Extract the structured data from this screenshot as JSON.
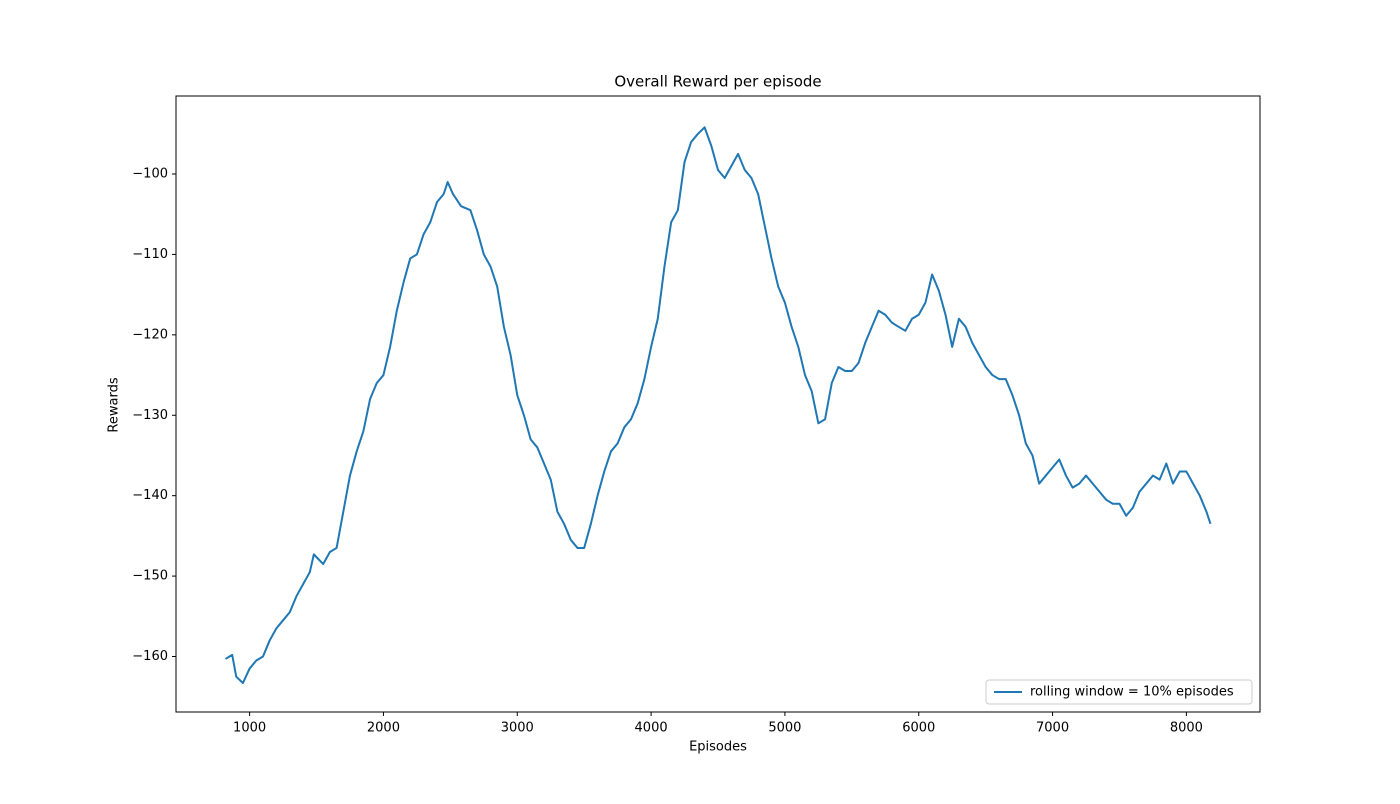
{
  "chart_data": {
    "type": "line",
    "title": "Overall Reward per episode",
    "x_label": "Episodes",
    "y_label": "Rewards",
    "xlim": [
      450,
      8550
    ],
    "ylim": [
      -166.9,
      -90.3
    ],
    "xticks": [
      1000,
      2000,
      3000,
      4000,
      5000,
      6000,
      7000,
      8000
    ],
    "yticks": [
      {
        "value": -160,
        "label": "−160"
      },
      {
        "value": -150,
        "label": "−150"
      },
      {
        "value": -140,
        "label": "−140"
      },
      {
        "value": -130,
        "label": "−130"
      },
      {
        "value": -120,
        "label": "−120"
      },
      {
        "value": -110,
        "label": "−110"
      },
      {
        "value": -100,
        "label": "−100"
      }
    ],
    "legend": "lower right",
    "grid": false,
    "x": [
      820,
      850,
      870,
      900,
      950,
      1000,
      1050,
      1100,
      1150,
      1200,
      1250,
      1300,
      1350,
      1400,
      1450,
      1480,
      1550,
      1600,
      1650,
      1700,
      1750,
      1800,
      1850,
      1900,
      1950,
      2000,
      2050,
      2100,
      2150,
      2200,
      2250,
      2300,
      2350,
      2400,
      2450,
      2480,
      2520,
      2580,
      2650,
      2700,
      2750,
      2800,
      2850,
      2900,
      2950,
      3000,
      3050,
      3100,
      3150,
      3200,
      3250,
      3300,
      3350,
      3400,
      3450,
      3500,
      3550,
      3600,
      3650,
      3700,
      3750,
      3800,
      3850,
      3900,
      3950,
      4000,
      4050,
      4100,
      4150,
      4200,
      4250,
      4300,
      4350,
      4400,
      4450,
      4500,
      4550,
      4600,
      4650,
      4700,
      4750,
      4800,
      4850,
      4900,
      4950,
      5000,
      5050,
      5100,
      5150,
      5200,
      5250,
      5300,
      5350,
      5400,
      5450,
      5500,
      5550,
      5600,
      5650,
      5700,
      5750,
      5800,
      5850,
      5900,
      5950,
      6000,
      6050,
      6100,
      6150,
      6200,
      6250,
      6300,
      6350,
      6400,
      6450,
      6500,
      6550,
      6600,
      6650,
      6700,
      6750,
      6800,
      6850,
      6900,
      6950,
      7000,
      7050,
      7100,
      7150,
      7200,
      7250,
      7300,
      7350,
      7400,
      7450,
      7500,
      7550,
      7600,
      7650,
      7700,
      7750,
      7800,
      7850,
      7900,
      7950,
      8000,
      8050,
      8100,
      8150,
      8180
    ],
    "series": [
      {
        "name": "rolling window = 10% episodes",
        "color": "#1f77b4",
        "values": [
          -160.3,
          -160.0,
          -159.8,
          -162.5,
          -163.3,
          -161.5,
          -160.5,
          -160.0,
          -158.0,
          -156.5,
          -155.5,
          -154.5,
          -152.5,
          -151.0,
          -149.5,
          -147.3,
          -148.5,
          -147.0,
          -146.5,
          -142.0,
          -137.5,
          -134.5,
          -132.0,
          -128.0,
          -126.0,
          -125.0,
          -121.5,
          -117.0,
          -113.5,
          -110.5,
          -110.0,
          -107.5,
          -106.0,
          -103.5,
          -102.5,
          -101.0,
          -102.5,
          -104.0,
          -104.5,
          -107.0,
          -110.0,
          -111.5,
          -114.0,
          -119.0,
          -122.5,
          -127.5,
          -130.0,
          -133.0,
          -134.0,
          -136.0,
          -138.0,
          -142.0,
          -143.5,
          -145.5,
          -146.5,
          -146.5,
          -143.5,
          -140.0,
          -137.0,
          -134.5,
          -133.5,
          -131.5,
          -130.5,
          -128.5,
          -125.5,
          -121.5,
          -118.0,
          -111.5,
          -106.0,
          -104.5,
          -98.5,
          -96.0,
          -95.0,
          -94.2,
          -96.5,
          -99.5,
          -100.5,
          -99.0,
          -97.5,
          -99.5,
          -100.5,
          -102.5,
          -106.5,
          -110.5,
          -114.0,
          -116.0,
          -119.0,
          -121.5,
          -125.0,
          -127.0,
          -131.0,
          -130.5,
          -126.0,
          -124.0,
          -124.5,
          -124.5,
          -123.5,
          -121.0,
          -119.0,
          -117.0,
          -117.5,
          -118.5,
          -119.0,
          -119.5,
          -118.0,
          -117.5,
          -116.0,
          -112.5,
          -114.5,
          -117.5,
          -121.5,
          -118.0,
          -119.0,
          -121.0,
          -122.5,
          -124.0,
          -125.0,
          -125.5,
          -125.5,
          -127.5,
          -130.0,
          -133.5,
          -135.0,
          -138.5,
          -137.5,
          -136.5,
          -135.5,
          -137.5,
          -139.0,
          -138.5,
          -137.5,
          -138.5,
          -139.5,
          -140.5,
          -141.0,
          -141.0,
          -142.5,
          -141.5,
          -139.5,
          -138.5,
          -137.5,
          -138.0,
          -136.0,
          -138.5,
          -137.0,
          -137.0,
          -138.5,
          -140.0,
          -142.0,
          -143.5
        ]
      }
    ]
  }
}
